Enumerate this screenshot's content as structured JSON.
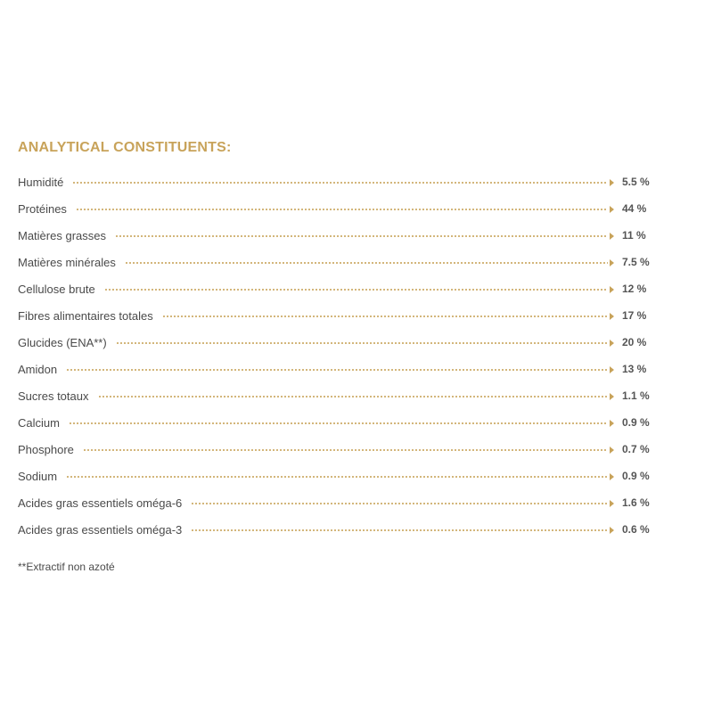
{
  "colors": {
    "accent": "#c8a35a",
    "text": "#4a4a4a"
  },
  "section": {
    "title": "ANALYTICAL CONSTITUENTS:"
  },
  "constituents": [
    {
      "label": "Humidité",
      "value": "5.5 %"
    },
    {
      "label": "Protéines",
      "value": "44 %"
    },
    {
      "label": "Matières grasses",
      "value": "11 %"
    },
    {
      "label": "Matières minérales",
      "value": "7.5 %"
    },
    {
      "label": "Cellulose brute",
      "value": "12 %"
    },
    {
      "label": "Fibres alimentaires totales",
      "value": "17 %"
    },
    {
      "label": "Glucides (ENA**)",
      "value": "20 %"
    },
    {
      "label": "Amidon",
      "value": "13 %"
    },
    {
      "label": "Sucres totaux",
      "value": "1.1 %"
    },
    {
      "label": "Calcium",
      "value": "0.9 %"
    },
    {
      "label": "Phosphore",
      "value": "0.7 %"
    },
    {
      "label": "Sodium",
      "value": "0.9 %"
    },
    {
      "label": "Acides gras essentiels oméga-6",
      "value": "1.6 %"
    },
    {
      "label": "Acides gras essentiels oméga-3",
      "value": "0.6 %"
    }
  ],
  "footnote": "**Extractif non azoté"
}
